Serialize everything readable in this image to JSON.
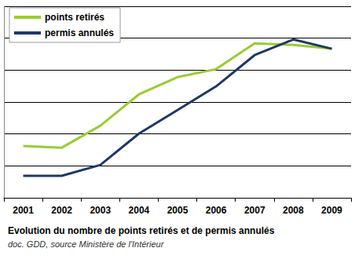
{
  "chart_data": {
    "type": "line",
    "title": "Evolution du nombre de points retirés et de permis annulés",
    "subtitle": "doc. GDD, source Ministère de l'Intérieur",
    "categories": [
      "2001",
      "2002",
      "2003",
      "2004",
      "2005",
      "2006",
      "2007",
      "2008",
      "2009"
    ],
    "series": [
      {
        "name": "points retirés",
        "color": "#99cc33",
        "values": [
          1.62,
          1.57,
          2.26,
          3.24,
          3.78,
          4.03,
          4.84,
          4.79,
          4.67
        ]
      },
      {
        "name": "permis annulés",
        "color": "#1f3864",
        "values": [
          0.69,
          0.69,
          1.03,
          2.01,
          2.75,
          3.49,
          4.47,
          4.96,
          4.67
        ]
      }
    ],
    "ylim": [
      0,
      6
    ],
    "yticks": [
      0,
      1,
      2,
      3,
      4,
      5,
      6
    ],
    "grid": true,
    "legend": "upper left",
    "tick_labels": "x",
    "marker": "none",
    "line_style": "solid"
  }
}
